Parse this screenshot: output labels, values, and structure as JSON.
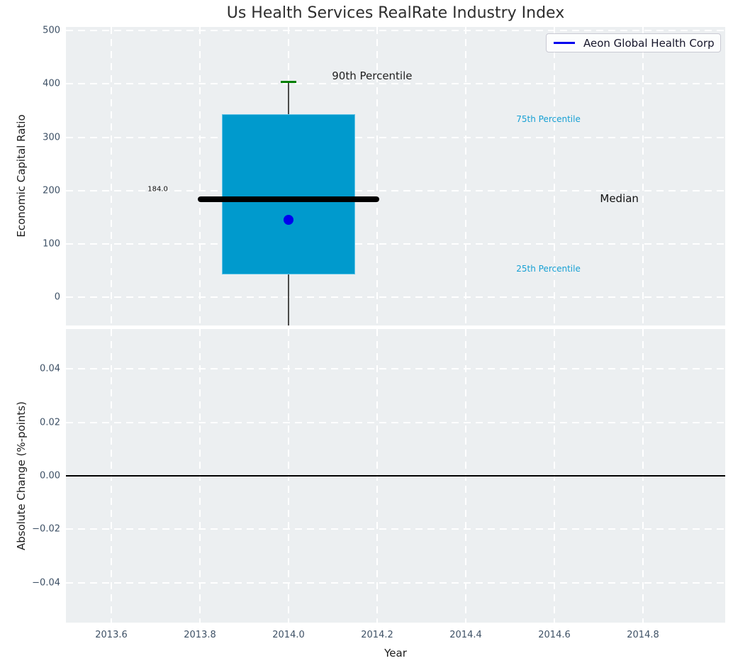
{
  "title": "Us Health Services RealRate Industry Index",
  "legend": {
    "label": "Aeon Global Health Corp",
    "line_color": "#0000ee"
  },
  "colors": {
    "figure_bg": "#ffffff",
    "axes_bg": "#eceff1",
    "grid": "#ffffff",
    "tick_label": "#3e5166",
    "title_text": "#2e2e2e",
    "box_fill": "#009acd",
    "box_edge": "#62c6e8",
    "median_line": "#000000",
    "cap_90th": "#008000",
    "whisker": "#4a4a4a",
    "company_marker": "#0000ee",
    "percentile_label": "#17a0d4",
    "zero_line": "#000000"
  },
  "chart_data": [
    {
      "type": "box",
      "title": "Us Health Services RealRate Industry Index",
      "ylabel": "Economic Capital Ratio",
      "ylim": [
        -53,
        507
      ],
      "xlim": [
        2013.4976,
        2014.9856
      ],
      "yticks": [
        500,
        400,
        300,
        200,
        100,
        0
      ],
      "ytick_labels": [
        "500",
        "400",
        "300",
        "200",
        "100",
        "0"
      ],
      "xticks": [
        2013.6,
        2013.8,
        2014.0,
        2014.2,
        2014.4,
        2014.6,
        2014.8
      ],
      "grid": true,
      "legend_position": "upper right",
      "box": {
        "x": 2014.0,
        "q25": 43,
        "median": 184.0,
        "q75": 343,
        "p90": 404,
        "whisker_low": -55,
        "whisker_low_clipped": true,
        "box_halfwidth_years": 0.15,
        "median_halfwidth_years": 0.205,
        "cap_halfwidth_years": 0.017
      },
      "company_point": {
        "name": "Aeon Global Health Corp",
        "x": 2014.0,
        "y": 145
      },
      "annotations": [
        {
          "text": "90th Percentile",
          "x": 2014.098,
          "y": 415,
          "color": "#1f1f1f",
          "size": 15
        },
        {
          "text": "75th Percentile",
          "x": 2014.514,
          "y": 334,
          "color": "#17a0d4",
          "size": 12
        },
        {
          "text": "Median",
          "x": 2014.703,
          "y": 185,
          "color": "#111111",
          "size": 15
        },
        {
          "text": "25th Percentile",
          "x": 2014.514,
          "y": 53,
          "color": "#17a0d4",
          "size": 12
        },
        {
          "text": "184.0",
          "x": 2013.682,
          "y": 202,
          "color": "#111111",
          "size": 10
        }
      ]
    },
    {
      "type": "line",
      "ylabel": "Absolute Change (%-points)",
      "xlabel": "Year",
      "ylim": [
        -0.055,
        0.055
      ],
      "xlim": [
        2013.4976,
        2014.9856
      ],
      "yticks": [
        0.04,
        0.02,
        0.0,
        -0.02,
        -0.04
      ],
      "ytick_labels": [
        "0.04",
        "0.02",
        "0.00",
        "−0.02",
        "−0.04"
      ],
      "xticks": [
        2013.6,
        2013.8,
        2014.0,
        2014.2,
        2014.4,
        2014.6,
        2014.8
      ],
      "xtick_labels": [
        "2013.6",
        "2013.8",
        "2014.0",
        "2014.2",
        "2014.4",
        "2014.6",
        "2014.8"
      ],
      "grid": true,
      "zero_line": 0.0,
      "series": []
    }
  ]
}
